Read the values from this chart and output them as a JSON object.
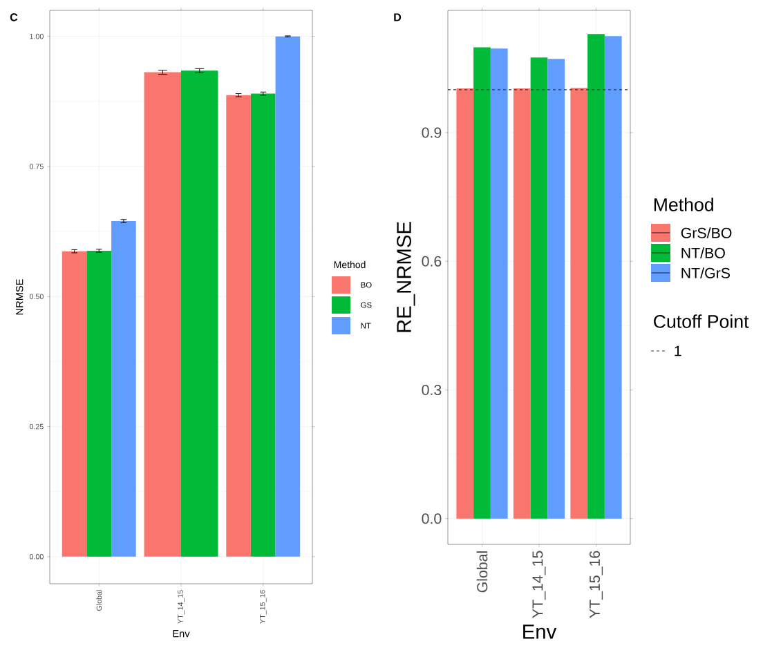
{
  "chart_data": [
    {
      "type": "bar",
      "title": "C",
      "xlabel": "Env",
      "ylabel": "NRMSE",
      "legend_title": "Method",
      "legend": "right",
      "grid": true,
      "categories": [
        "Global",
        "YT_14_15",
        "YT_15_16"
      ],
      "series": [
        {
          "name": "BO",
          "color": "#f8766d",
          "values": [
            0.587,
            0.931,
            0.887
          ],
          "errors": [
            0.003,
            0.004,
            0.003
          ]
        },
        {
          "name": "GS",
          "color": "#00ba38",
          "values": [
            0.588,
            0.934,
            0.89
          ],
          "errors": [
            0.003,
            0.004,
            0.003
          ]
        },
        {
          "name": "NT",
          "color": "#619cff",
          "values": [
            0.645,
            null,
            1.0
          ],
          "errors": [
            0.003,
            null,
            0.001
          ]
        }
      ],
      "ylim": [
        -0.052,
        1.05
      ],
      "yticks": [
        {
          "value": 0,
          "label": "0.00"
        },
        {
          "value": 0.25,
          "label": "0.25"
        },
        {
          "value": 0.5,
          "label": "0.50"
        },
        {
          "value": 0.75,
          "label": "0.75"
        },
        {
          "value": 1.0,
          "label": "1.00"
        }
      ]
    },
    {
      "type": "bar",
      "title": "D",
      "xlabel": "Env",
      "ylabel": "RE_NRMSE",
      "legend_title": "Method",
      "legend": "right",
      "grid": true,
      "categories": [
        "Global",
        "YT_14_15",
        "YT_15_16"
      ],
      "series": [
        {
          "name": "GrS/BO",
          "color": "#f8766d",
          "values": [
            1.003,
            1.003,
            1.004
          ]
        },
        {
          "name": "NT/BO",
          "color": "#00ba38",
          "values": [
            1.099,
            1.075,
            1.13
          ]
        },
        {
          "name": "NT/GrS",
          "color": "#619cff",
          "values": [
            1.096,
            1.072,
            1.125
          ]
        }
      ],
      "ylim": [
        -0.06,
        1.185
      ],
      "yticks": [
        {
          "value": 0,
          "label": "0.0"
        },
        {
          "value": 0.3,
          "label": "0.3"
        },
        {
          "value": 0.6,
          "label": "0.6"
        },
        {
          "value": 0.9,
          "label": "0.9"
        }
      ],
      "ref_lines": [
        {
          "axis": "y",
          "value": 1,
          "label": "1",
          "line_style": "dashed",
          "color": "#333333"
        }
      ],
      "annotations": [
        "Cutoff Point"
      ]
    }
  ]
}
